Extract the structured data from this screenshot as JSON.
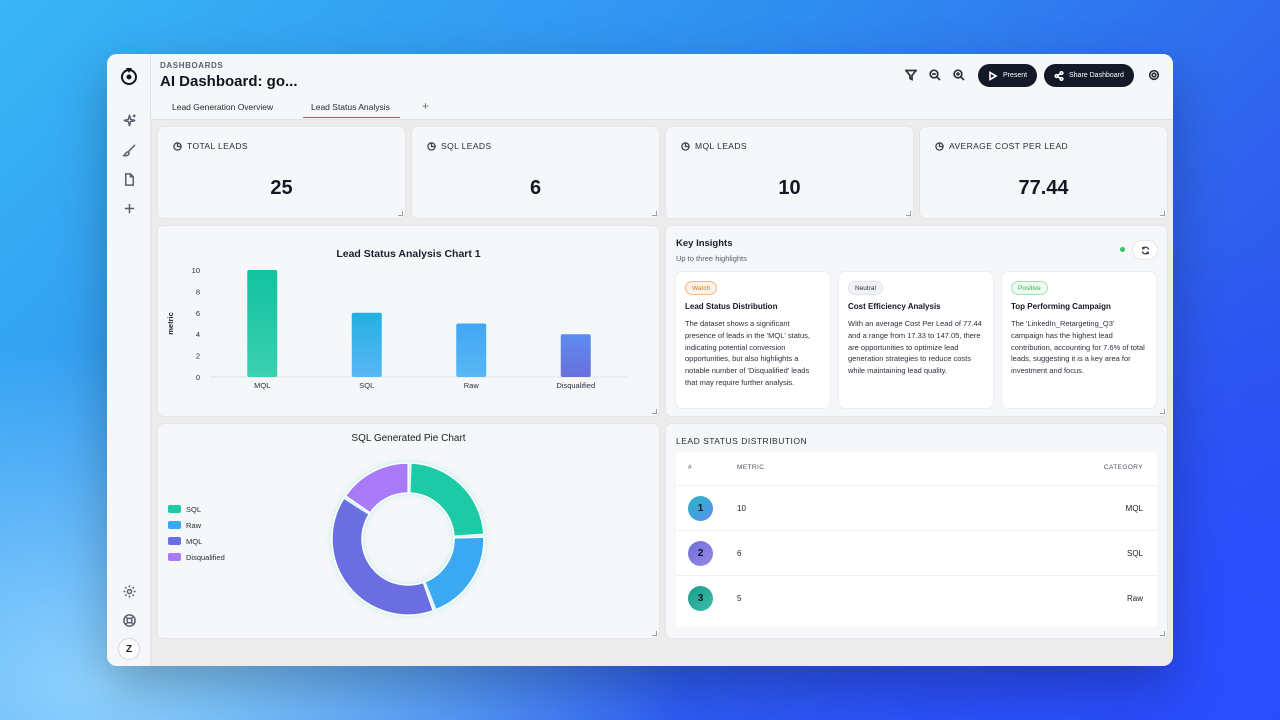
{
  "header": {
    "breadcrumb": "DASHBOARDS",
    "title": "AI Dashboard: go...",
    "present_label": "Present",
    "share_label": "Share Dashboard"
  },
  "tabs": [
    {
      "label": "Lead Generation Overview",
      "active": false
    },
    {
      "label": "Lead Status Analysis",
      "active": true
    }
  ],
  "tab_add": "+",
  "user_initial": "Z",
  "kpis": [
    {
      "label": "TOTAL LEADS",
      "value": "25"
    },
    {
      "label": "SQL LEADS",
      "value": "6"
    },
    {
      "label": "MQL LEADS",
      "value": "10"
    },
    {
      "label": "AVERAGE COST PER LEAD",
      "value": "77.44"
    }
  ],
  "bar_chart": {
    "title": "Lead Status Analysis Chart 1",
    "ylabel": "metric"
  },
  "pie_chart": {
    "title": "SQL Generated Pie Chart"
  },
  "insights": {
    "title": "Key Insights",
    "subtitle": "Up to three highlights",
    "cards": [
      {
        "badge": "Watch",
        "kind": "watch",
        "title": "Lead Status Distribution",
        "text": "The dataset shows a significant presence of leads in the 'MQL' status, indicating potential conversion opportunities, but also highlights a notable number of 'Disqualified' leads that may require further analysis."
      },
      {
        "badge": "Neutral",
        "kind": "neutral",
        "title": "Cost Efficiency Analysis",
        "text": "With an average Cost Per Lead of 77.44 and a range from 17.33 to 147.05, there are opportunities to optimize lead generation strategies to reduce costs while maintaining lead quality."
      },
      {
        "badge": "Positive",
        "kind": "positive",
        "title": "Top Performing Campaign",
        "text": "The 'LinkedIn_Retargeting_Q3' campaign has the highest lead contribution, accounting for 7.6% of total leads, suggesting it is a key area for investment and focus."
      }
    ]
  },
  "table": {
    "title": "LEAD STATUS DISTRIBUTION",
    "columns": [
      "#",
      "METRIC",
      "CATEGORY"
    ],
    "rows": [
      {
        "rank": "1",
        "metric": "10",
        "category": "MQL"
      },
      {
        "rank": "2",
        "metric": "6",
        "category": "SQL"
      },
      {
        "rank": "3",
        "metric": "5",
        "category": "Raw"
      }
    ]
  },
  "chart_data": [
    {
      "type": "bar",
      "title": "Lead Status Analysis Chart 1",
      "xlabel": "",
      "ylabel": "metric",
      "categories": [
        "MQL",
        "SQL",
        "Raw",
        "Disqualified"
      ],
      "values": [
        10,
        6,
        5,
        4
      ],
      "ylim": [
        0,
        10
      ],
      "yticks": [
        0,
        2,
        4,
        6,
        8,
        10
      ],
      "colors": [
        "#12c2a0",
        "#23b0e3",
        "#42a6f2",
        "#5d8cf0"
      ],
      "grid": false
    },
    {
      "type": "pie",
      "title": "SQL Generated Pie Chart",
      "categories": [
        "SQL",
        "Raw",
        "MQL",
        "Disqualified"
      ],
      "values": [
        6,
        5,
        10,
        4
      ],
      "colors": [
        "#1fcaa6",
        "#3aa9f2",
        "#6a6ee0",
        "#a97af7"
      ],
      "donut": true,
      "legend": "left"
    }
  ]
}
